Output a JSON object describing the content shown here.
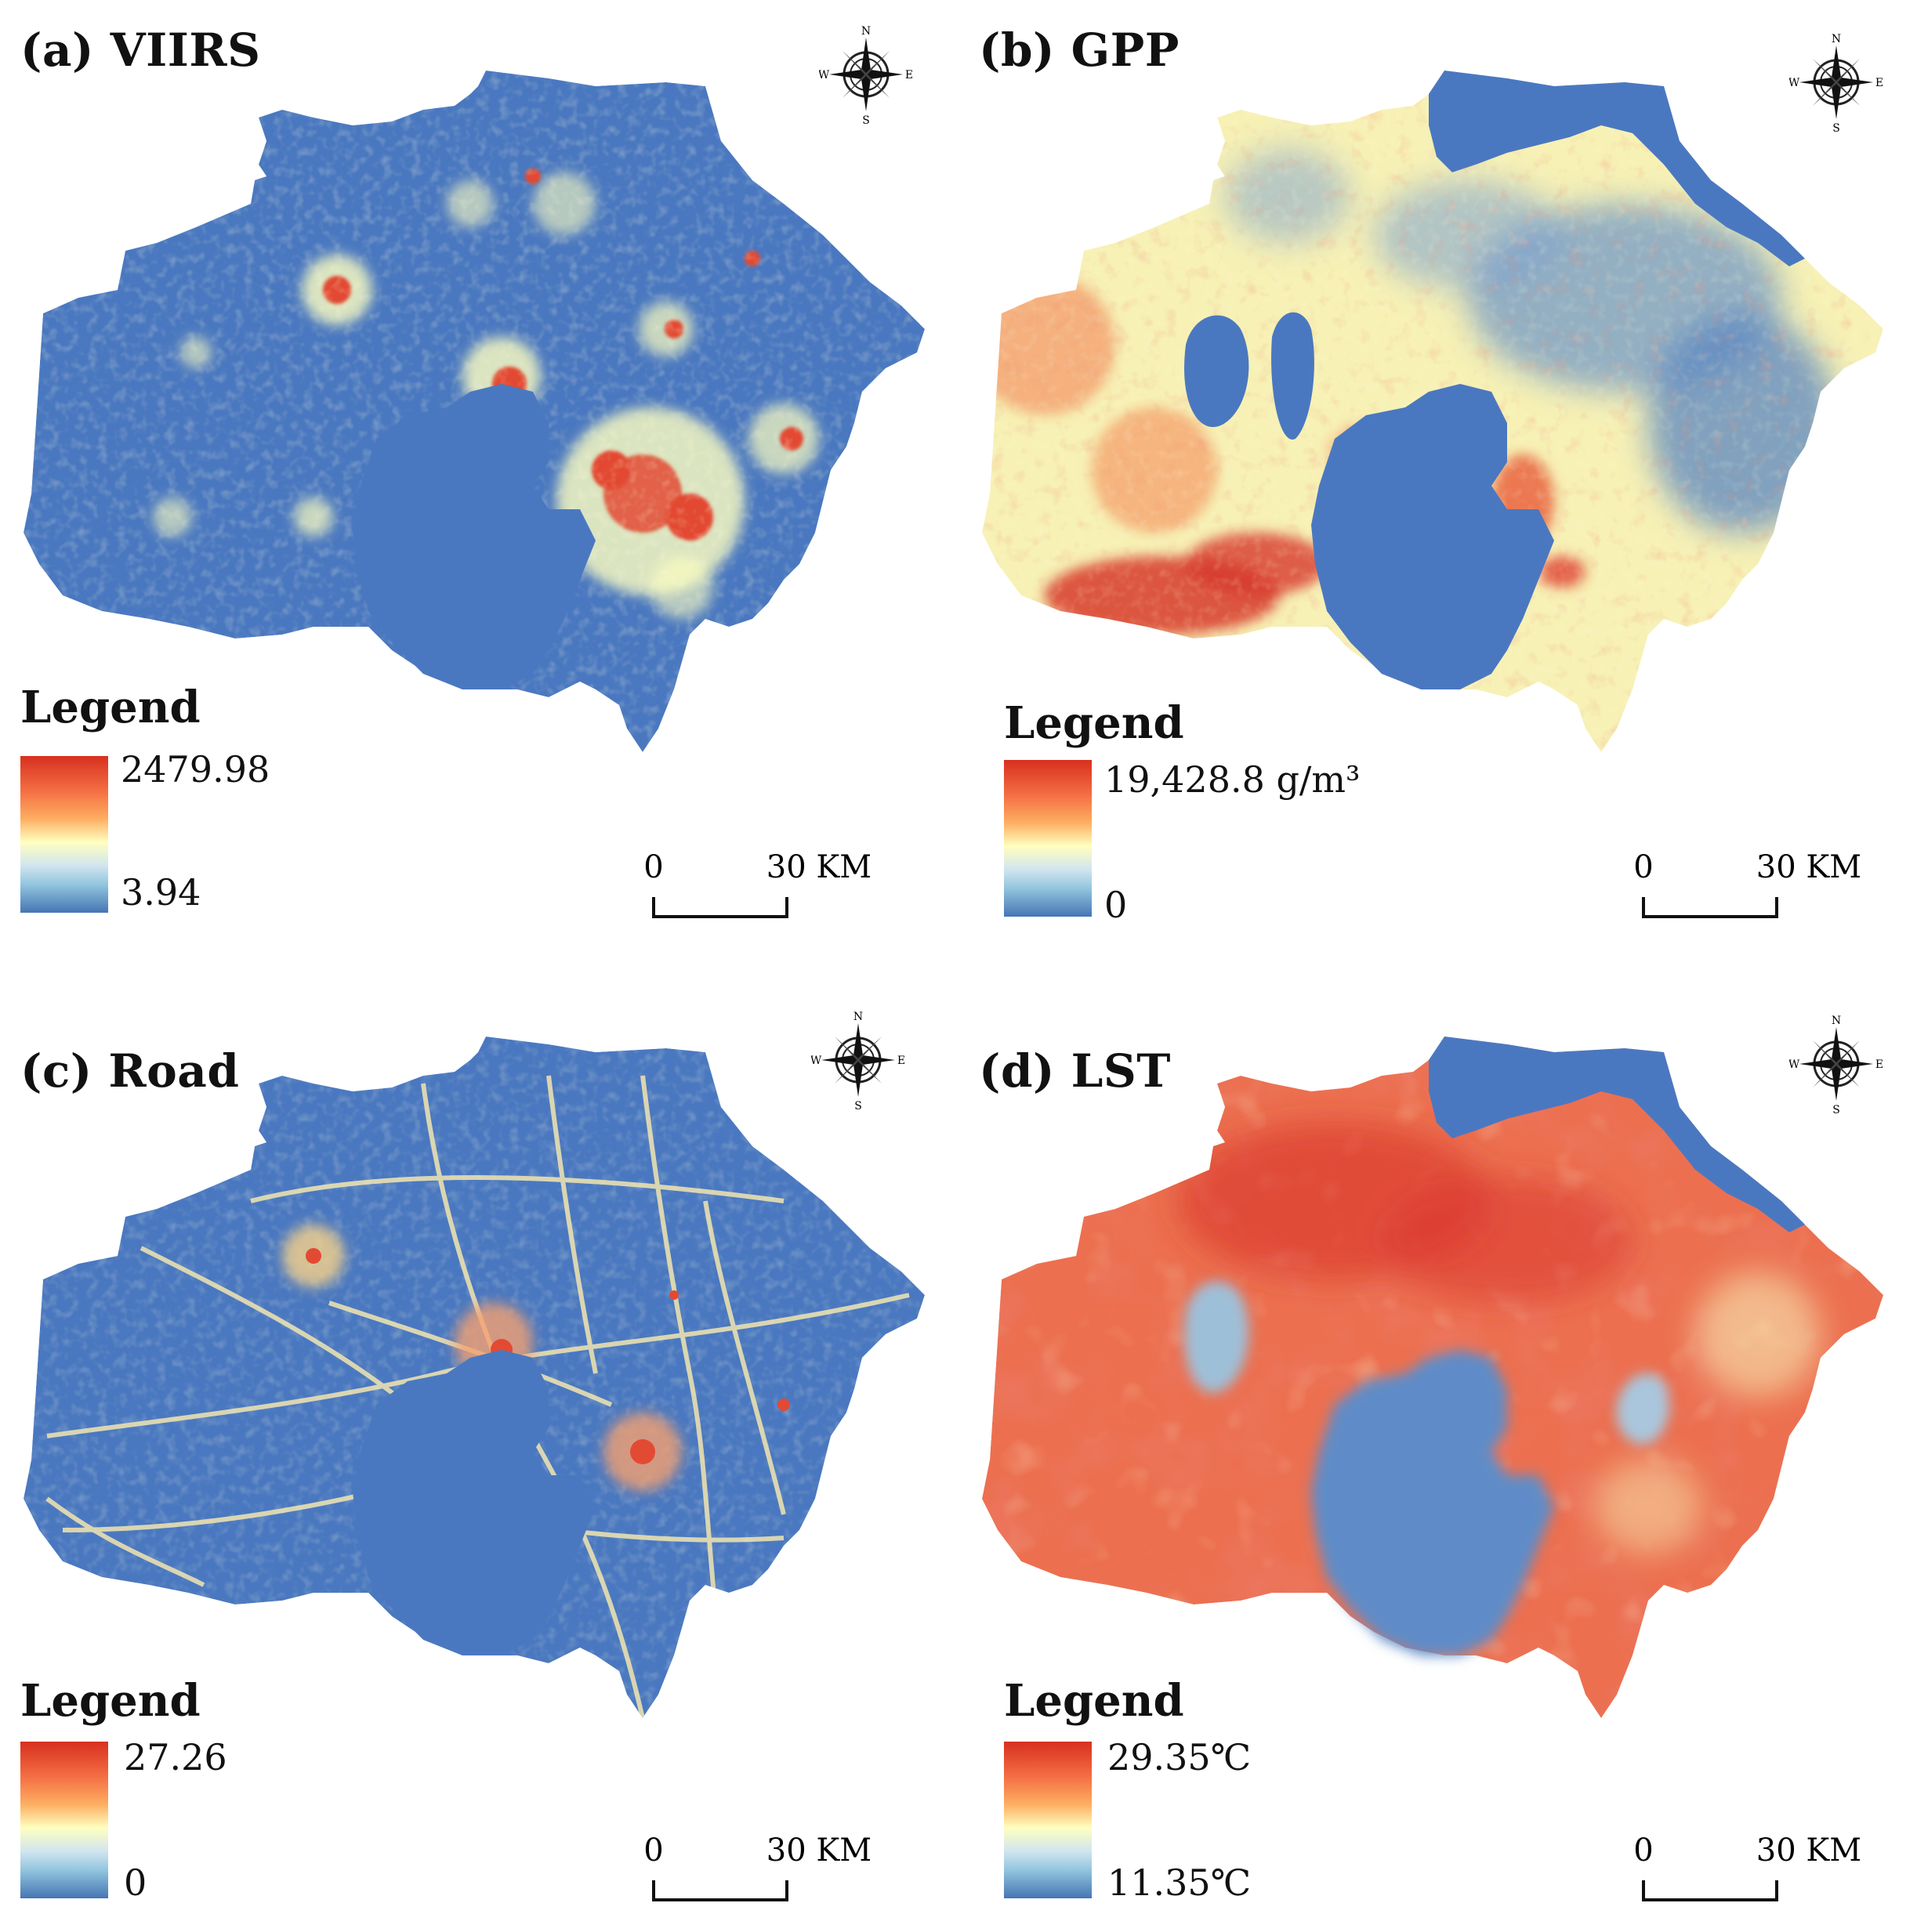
{
  "colors": {
    "low": "#4575b4",
    "mid": "#ffffbf",
    "high": "#d7301f",
    "water": "#4a78c0"
  },
  "panels": [
    {
      "id": "a",
      "title": "(a) VIIRS",
      "legend_title": "Legend",
      "legend_max": "2479.98",
      "legend_min": "3.94"
    },
    {
      "id": "b",
      "title": "(b) GPP",
      "legend_title": "Legend",
      "legend_max": "19,428.8 g/m³",
      "legend_min": "0"
    },
    {
      "id": "c",
      "title": "(c) Road",
      "legend_title": "Legend",
      "legend_max": "27.26",
      "legend_min": "0"
    },
    {
      "id": "d",
      "title": "(d) LST",
      "legend_title": "Legend",
      "legend_max": "29.35℃",
      "legend_min": "11.35℃"
    }
  ],
  "scalebar": {
    "start": "0",
    "end": "30 KM"
  },
  "compass": {
    "n": "N",
    "s": "S",
    "e": "E",
    "w": "W"
  }
}
